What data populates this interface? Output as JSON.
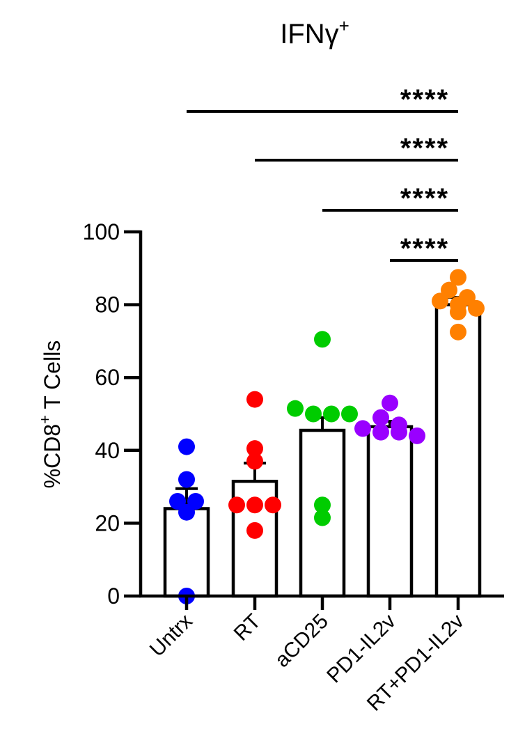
{
  "chart_data": {
    "type": "bar",
    "title": "IFNγ",
    "title_superscript": "+",
    "ylabel_prefix": "%CD8",
    "ylabel_superscript": "+",
    "ylabel_suffix": " T Cells",
    "ylim": [
      0,
      100
    ],
    "yticks": [
      0,
      20,
      40,
      60,
      80,
      100
    ],
    "grid": false,
    "categories": [
      "Untrx",
      "RT",
      "aCD25",
      "PD1-IL2v",
      "RT+PD1-IL2v"
    ],
    "colors": [
      "#0000ff",
      "#ff0000",
      "#00cc00",
      "#9900ff",
      "#ff8000"
    ],
    "means": [
      24,
      31.5,
      45.5,
      46.5,
      80
    ],
    "sem": [
      5.5,
      5.0,
      3.5,
      1.5,
      2.0
    ],
    "points": [
      [
        41,
        32,
        26,
        26,
        23,
        0
      ],
      [
        54,
        40.5,
        37,
        25,
        25,
        25,
        18
      ],
      [
        70.5,
        51.5,
        50,
        50,
        50,
        25,
        21.5
      ],
      [
        53,
        49,
        47,
        46,
        45,
        45,
        44
      ],
      [
        87.5,
        84,
        82,
        81,
        80,
        79,
        78,
        72.5
      ]
    ],
    "comparisons": [
      {
        "from": "Untrx",
        "to": "RT+PD1-IL2v",
        "label": "****"
      },
      {
        "from": "RT",
        "to": "RT+PD1-IL2v",
        "label": "****"
      },
      {
        "from": "aCD25",
        "to": "RT+PD1-IL2v",
        "label": "****"
      },
      {
        "from": "PD1-IL2v",
        "to": "RT+PD1-IL2v",
        "label": "****"
      }
    ]
  }
}
